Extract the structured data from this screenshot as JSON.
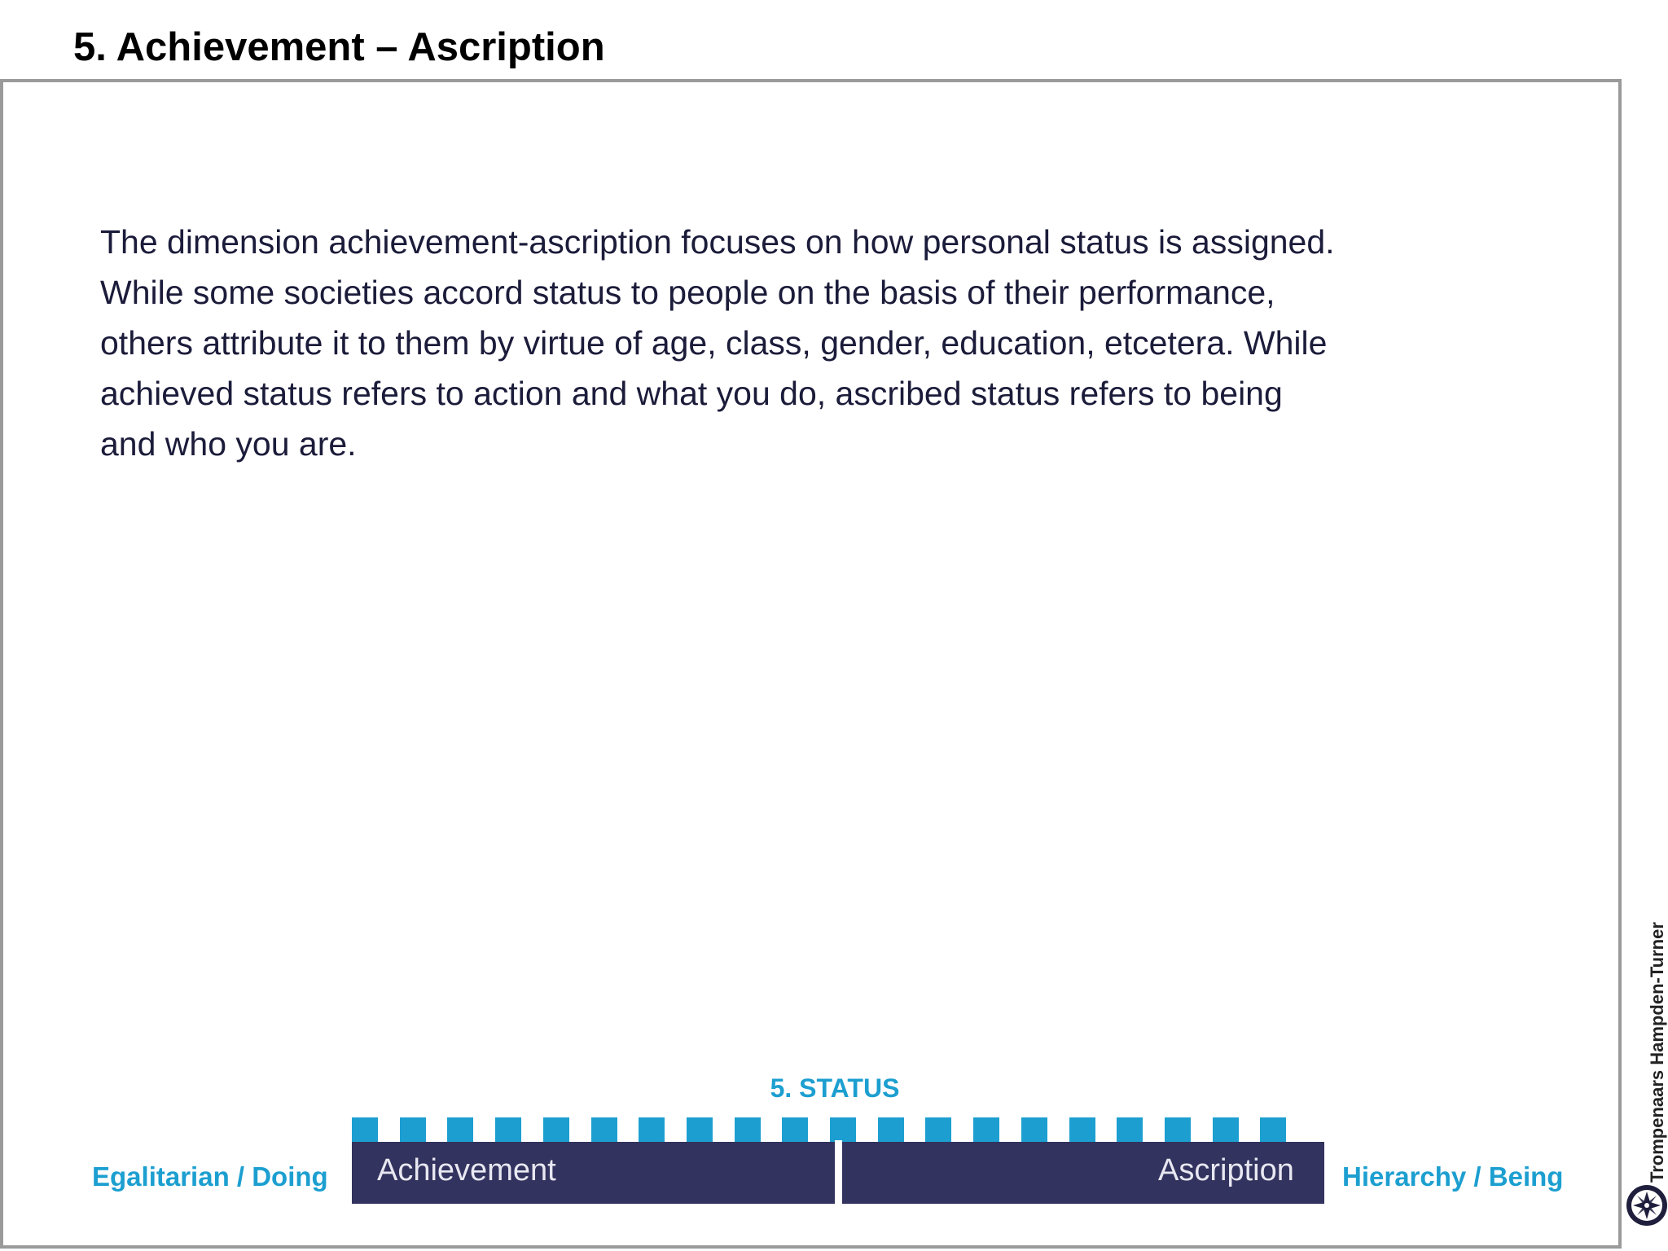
{
  "slide": {
    "title": "5. Achievement – Ascription",
    "body_lines": [
      "The dimension achievement-ascription focuses on how personal status is assigned.",
      "While some societies accord status to people on the basis of their performance,",
      "others attribute it to them by virtue of age, class, gender, education, etcetera. While",
      "achieved status refers to action and what you do, ascribed status refers to being",
      "and who you are."
    ]
  },
  "scale": {
    "label": "5. STATUS",
    "left_pole": "Achievement",
    "right_pole": "Ascription",
    "left_outer": "Egalitarian / Doing",
    "right_outer": "Hierarchy / Being",
    "tick_count": 20
  },
  "brand": {
    "name": "Trompenaars Hampden-Turner",
    "logo_icon": "compass-star-logo-icon"
  },
  "colors": {
    "accent": "#1c9fd0",
    "bar": "#33335f",
    "text": "#1b1b3a",
    "frame": "#9a9a9a"
  }
}
